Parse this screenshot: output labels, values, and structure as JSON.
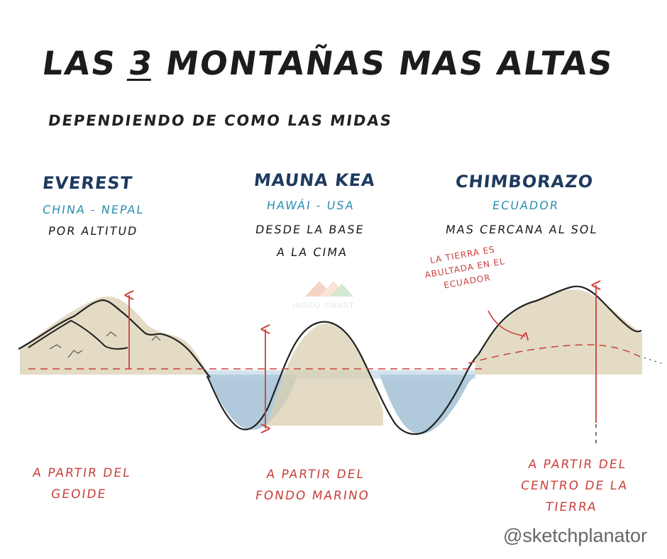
{
  "title": {
    "prefix": "LAS ",
    "number": "3",
    "suffix": " MONTAÑAS MAS ALTAS"
  },
  "subtitle": "DEPENDIENDO DE COMO LAS MIDAS",
  "mountains": [
    {
      "name": "EVEREST",
      "country": "CHINA - NEPAL",
      "desc_lines": [
        "POR ALTITUD"
      ],
      "measure_lines": [
        "A PARTIR DEL",
        "GEOIDE"
      ]
    },
    {
      "name": "MAUNA KEA",
      "country": "HAWÁI - USA",
      "desc_lines": [
        "DESDE LA BASE",
        "A LA CIMA"
      ],
      "measure_lines": [
        "A PARTIR DEL",
        "FONDO MARINO"
      ]
    },
    {
      "name": "CHIMBORAZO",
      "country": "ECUADOR",
      "desc_lines": [
        "MAS CERCANA AL SOL"
      ],
      "measure_lines": [
        "A PARTIR DEL",
        "CENTRO DE LA",
        "TIERRA"
      ]
    }
  ],
  "bulge_note_lines": [
    "LA TIERRA ES",
    "ABULTADA EN EL",
    "ECUADOR"
  ],
  "watermark": "INGEO SMART",
  "credit": "@sketchplanator",
  "colors": {
    "text_dark": "#1c1c1c",
    "mountain_name": "#1f3a5f",
    "country": "#2b8fb0",
    "red_annotation": "#c9413c",
    "sea": "#8fb4cc",
    "land": "#d9cfb0"
  }
}
